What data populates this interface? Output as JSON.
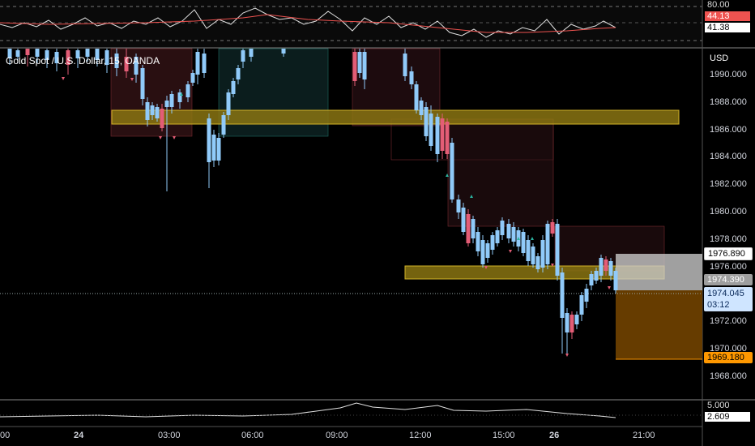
{
  "symbol": {
    "legend": "Gold Spot / U.S. Dollar, 15, OANDA"
  },
  "price_axis": {
    "unit": "USD",
    "ticks": [
      "1990.000",
      "1988.000",
      "1986.000",
      "1984.000",
      "1982.000",
      "1980.000",
      "1978.000",
      "1976.000",
      "1974.000",
      "1972.000",
      "1970.000",
      "1968.000"
    ],
    "labels": {
      "upper": "1976.890",
      "entry": "1974.390",
      "last": "1974.045",
      "countdown": "03:12",
      "target": "1969.180"
    }
  },
  "rsi_pane": {
    "top_level": "80.00",
    "value_red": "44.13",
    "value_white": "41.38"
  },
  "bottom_pane": {
    "top_level": "5.000",
    "value": "2.609"
  },
  "time_axis": {
    "labels": [
      "00",
      "24",
      "03:00",
      "06:00",
      "09:00",
      "12:00",
      "15:00",
      "26",
      "21:00"
    ]
  },
  "colors": {
    "bull": "#90caf9",
    "bear": "#e35d76",
    "zone": "#c9a227",
    "target_box": "#6b3f00",
    "rsi_red": "#ef5350"
  }
}
